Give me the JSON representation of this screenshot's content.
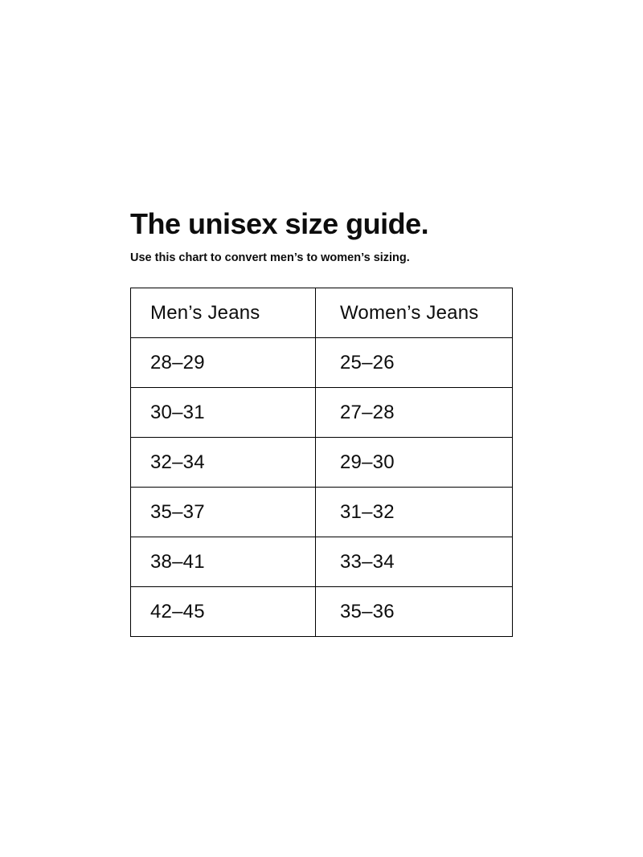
{
  "page": {
    "title": "The unisex size guide.",
    "subtitle": "Use this chart to convert men’s to women’s sizing."
  },
  "size_table": {
    "columns": [
      "Men’s Jeans",
      "Women’s Jeans"
    ],
    "rows": [
      [
        "28–29",
        "25–26"
      ],
      [
        "30–31",
        "27–28"
      ],
      [
        "32–34",
        "29–30"
      ],
      [
        "35–37",
        "31–32"
      ],
      [
        "38–41",
        "33–34"
      ],
      [
        "42–45",
        "35–36"
      ]
    ]
  },
  "colors": {
    "background": "#ffffff",
    "text": "#0d0d0d",
    "table_border": "#000000"
  }
}
